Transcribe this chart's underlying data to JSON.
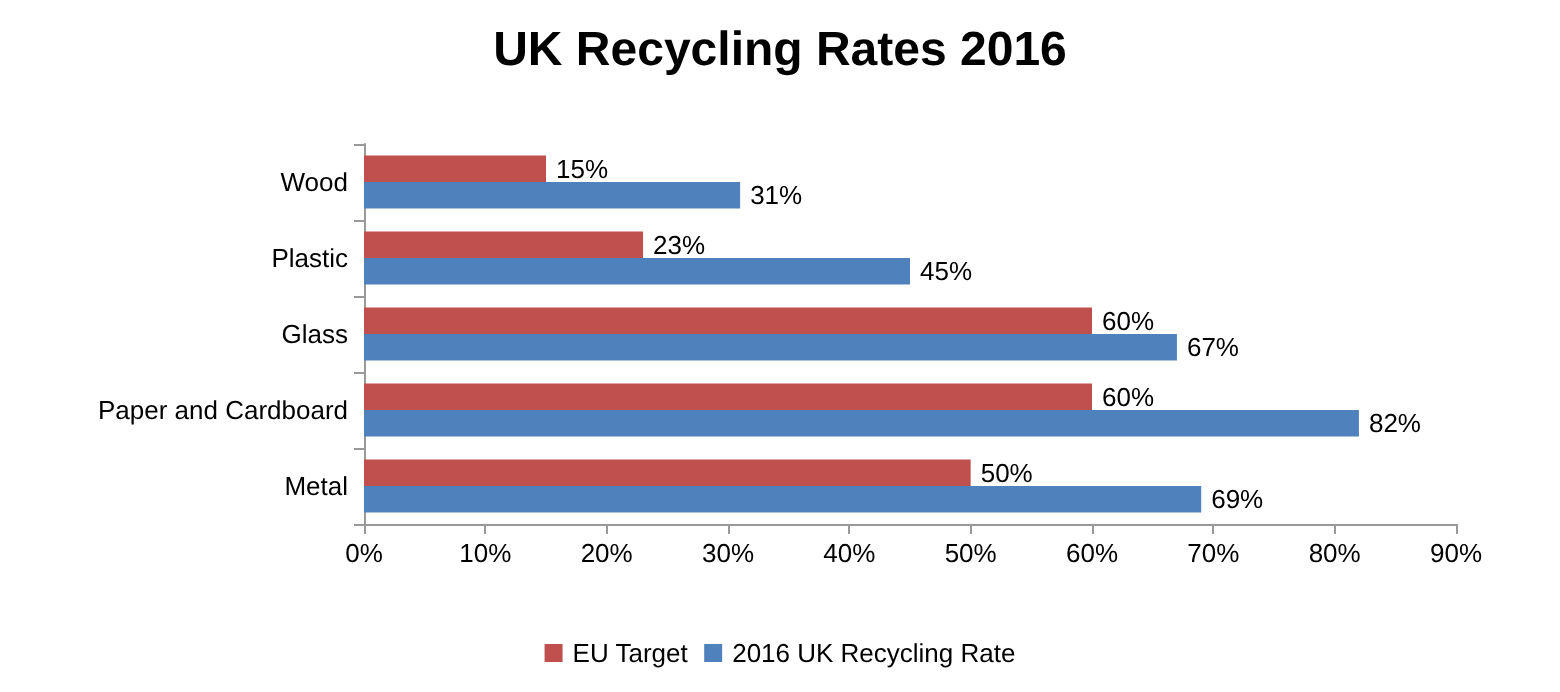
{
  "chart_data": {
    "type": "bar",
    "orientation": "horizontal",
    "title": "UK Recycling Rates 2016",
    "categories": [
      "Wood",
      "Plastic",
      "Glass",
      "Paper and Cardboard",
      "Metal"
    ],
    "series": [
      {
        "name": "EU Target",
        "color": "#c0504d",
        "values": [
          15,
          23,
          60,
          60,
          50
        ],
        "value_labels": [
          "15%",
          "23%",
          "60%",
          "60%",
          "50%"
        ]
      },
      {
        "name": "2016 UK Recycling Rate",
        "color": "#4f81bd",
        "values": [
          31,
          45,
          67,
          82,
          69
        ],
        "value_labels": [
          "31%",
          "45%",
          "67%",
          "82%",
          "69%"
        ]
      }
    ],
    "xlim": [
      0,
      90
    ],
    "xticks": [
      {
        "value": 0,
        "label": "0%"
      },
      {
        "value": 10,
        "label": "10%"
      },
      {
        "value": 20,
        "label": "20%"
      },
      {
        "value": 30,
        "label": "30%"
      },
      {
        "value": 40,
        "label": "40%"
      },
      {
        "value": 50,
        "label": "50%"
      },
      {
        "value": 60,
        "label": "60%"
      },
      {
        "value": 70,
        "label": "70%"
      },
      {
        "value": 80,
        "label": "80%"
      },
      {
        "value": 90,
        "label": "90%"
      }
    ],
    "grid": false,
    "legend": "bottom"
  }
}
